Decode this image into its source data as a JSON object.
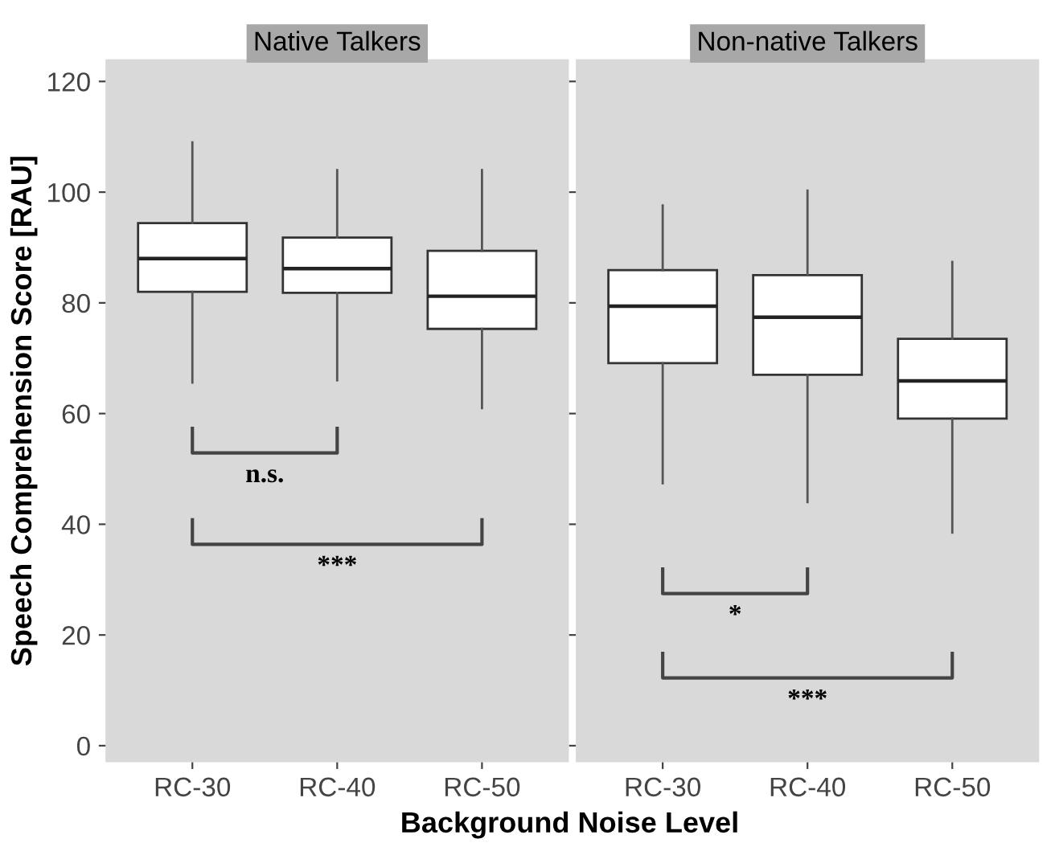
{
  "chart_data": [
    {
      "type": "box",
      "title": "Native Talkers",
      "xlabel": "Background Noise Level",
      "ylabel": "Speech Comprehension Score [RAU]",
      "categories": [
        "RC-30",
        "RC-40",
        "RC-50"
      ],
      "ylim": [
        -3,
        124
      ],
      "yticks": [
        0,
        20,
        40,
        60,
        80,
        100,
        120
      ],
      "grid": false,
      "boxes": [
        {
          "low": 65.6,
          "q1": 82,
          "median": 88,
          "q3": 94.4,
          "high": 109
        },
        {
          "low": 66,
          "q1": 81.8,
          "median": 86.2,
          "q3": 91.8,
          "high": 104
        },
        {
          "low": 61,
          "q1": 75.3,
          "median": 81.2,
          "q3": 89.4,
          "high": 104
        }
      ],
      "annotations": [
        "n.s.",
        "***"
      ]
    },
    {
      "type": "box",
      "title": "Non-native Talkers",
      "categories": [
        "RC-30",
        "RC-40",
        "RC-50"
      ],
      "ylim": [
        -3,
        124
      ],
      "yticks": [
        0,
        20,
        40,
        60,
        80,
        100,
        120
      ],
      "grid": false,
      "tick_labels": "x",
      "boxes": [
        {
          "low": 47.4,
          "q1": 69.1,
          "median": 79.4,
          "q3": 85.9,
          "high": 97.6
        },
        {
          "low": 44,
          "q1": 67,
          "median": 77.4,
          "q3": 85,
          "high": 100.3
        },
        {
          "low": 38.5,
          "q1": 59.1,
          "median": 65.9,
          "q3": 73.5,
          "high": 87.4
        }
      ],
      "annotations": [
        "*",
        "***"
      ]
    }
  ]
}
